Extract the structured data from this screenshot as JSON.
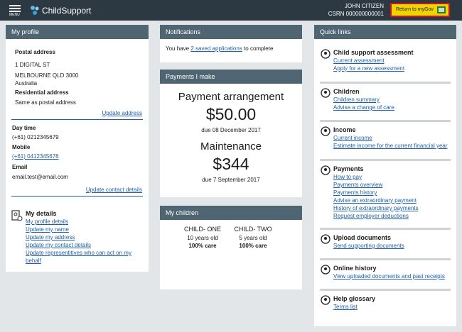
{
  "header": {
    "menu": "MENU",
    "brand": "ChildSupport",
    "user_name": "JOHN CITIZEN",
    "csrn": "CSRN 000000000001",
    "return_button": "Return to myGov"
  },
  "profile": {
    "title": "My profile",
    "postal_label": "Postal address",
    "postal_lines": [
      "1 DIGITAL ST",
      "MELBOURNE QLD 3000",
      "Australia"
    ],
    "residential_label": "Residential address",
    "residential_value": "Same as postal address",
    "update_address": "Update address",
    "day_label": "Day time",
    "day_value": "(+61) 0212345679",
    "mobile_label": "Mobile",
    "mobile_value": "(+61) 0412345678",
    "email_label": "Email",
    "email_value": "email.test@email.com",
    "update_contact": "Update contact details",
    "my_details": {
      "title": "My details",
      "links": [
        "My profile details",
        "Update my name",
        "Update my address",
        "Update my contact details",
        "Update representitives who can act on my",
        "behalf"
      ]
    }
  },
  "notifications": {
    "title": "Notifications",
    "text_before": "You have",
    "link": "2 saved applications",
    "text_after": "to complete"
  },
  "payments": {
    "title": "Payments I make",
    "items": [
      {
        "label": "Payment arrangement",
        "amount": "$50.00",
        "due": "due 08 December 2017"
      },
      {
        "label": "Maintenance",
        "amount": "$344",
        "due": "due 7 September 2017"
      }
    ]
  },
  "children": {
    "title": "My children",
    "items": [
      {
        "name": "CHILD- ONE",
        "age": "10 years old",
        "care": "100% care"
      },
      {
        "name": "CHILD- TWO",
        "age": "5 years old",
        "care": "100% care"
      }
    ]
  },
  "quick_links": {
    "title": "Quick links",
    "sections": [
      {
        "title": "Child support assessment",
        "links": [
          "Current assessment",
          "Apply for a new assessment"
        ]
      },
      {
        "title": "Children",
        "links": [
          "Children summary",
          "Advise a change of care"
        ]
      },
      {
        "title": "Income",
        "links": [
          "Current income",
          "Estimate income for the current financial year"
        ]
      },
      {
        "title": "Payments",
        "links": [
          "How to pay",
          "Payments overview",
          "Payments history",
          "Advise an extraordinary payment",
          "History of extraordinary payments",
          "Request employer deductions"
        ]
      },
      {
        "title": "Upload documents",
        "links": [
          "Send supporting documents"
        ]
      },
      {
        "title": "Online history",
        "links": [
          "View uploaded documents and past receipts"
        ]
      },
      {
        "title": "Help glossary",
        "links": [
          "Terms list"
        ]
      }
    ]
  }
}
